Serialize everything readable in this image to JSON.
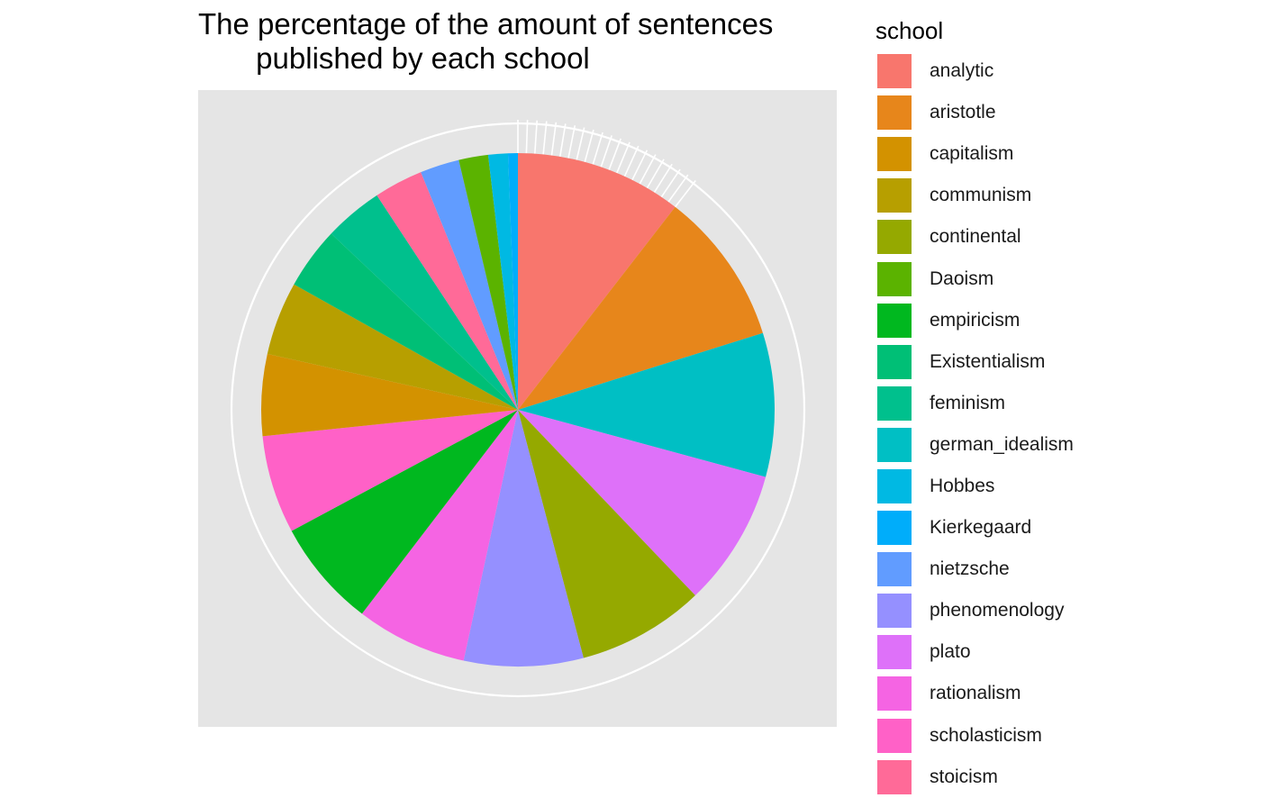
{
  "chart_data": {
    "type": "pie",
    "title": "The percentage of the amount of sentences\n       published by each school",
    "legend_title": "school",
    "legend_position": "right",
    "slices": [
      {
        "label": "analytic",
        "color": "#F8766D",
        "value": 10.2
      },
      {
        "label": "aristotle",
        "color": "#E7861B",
        "value": 9.4
      },
      {
        "label": "german_idealism",
        "color": "#00BFC4",
        "value": 8.8
      },
      {
        "label": "plato",
        "color": "#DE71F9",
        "value": 8.4
      },
      {
        "label": "continental",
        "color": "#95A900",
        "value": 7.8
      },
      {
        "label": "phenomenology",
        "color": "#9590FF",
        "value": 7.3
      },
      {
        "label": "rationalism",
        "color": "#F564E3",
        "value": 6.8
      },
      {
        "label": "empiricism",
        "color": "#00B81F",
        "value": 6.6
      },
      {
        "label": "scholasticism",
        "color": "#FF61C7",
        "value": 6.0
      },
      {
        "label": "capitalism",
        "color": "#D39200",
        "value": 5.0
      },
      {
        "label": "communism",
        "color": "#B79F00",
        "value": 4.5
      },
      {
        "label": "Existentialism",
        "color": "#00BF76",
        "value": 3.8
      },
      {
        "label": "feminism",
        "color": "#00C08D",
        "value": 3.6
      },
      {
        "label": "stoicism",
        "color": "#FF6A98",
        "value": 3.0
      },
      {
        "label": "nietzsche",
        "color": "#619CFF",
        "value": 2.4
      },
      {
        "label": "Daoism",
        "color": "#5BB300",
        "value": 1.8
      },
      {
        "label": "Hobbes",
        "color": "#00B9E3",
        "value": 1.2
      },
      {
        "label": "Kierkegaard",
        "color": "#00ADFA",
        "value": 0.6
      }
    ],
    "legend_items": [
      {
        "label": "analytic",
        "color": "#F8766D"
      },
      {
        "label": "aristotle",
        "color": "#E7861B"
      },
      {
        "label": "capitalism",
        "color": "#D39200"
      },
      {
        "label": "communism",
        "color": "#B79F00"
      },
      {
        "label": "continental",
        "color": "#95A900"
      },
      {
        "label": "Daoism",
        "color": "#5BB300"
      },
      {
        "label": "empiricism",
        "color": "#00B81F"
      },
      {
        "label": "Existentialism",
        "color": "#00BF76"
      },
      {
        "label": "feminism",
        "color": "#00C08D"
      },
      {
        "label": "german_idealism",
        "color": "#00BFC4"
      },
      {
        "label": "Hobbes",
        "color": "#00B9E3"
      },
      {
        "label": "Kierkegaard",
        "color": "#00ADFA"
      },
      {
        "label": "nietzsche",
        "color": "#619CFF"
      },
      {
        "label": "phenomenology",
        "color": "#9590FF"
      },
      {
        "label": "plato",
        "color": "#DE71F9"
      },
      {
        "label": "rationalism",
        "color": "#F564E3"
      },
      {
        "label": "scholasticism",
        "color": "#FF61C7"
      },
      {
        "label": "stoicism",
        "color": "#FF6A98"
      }
    ],
    "panel_background": "#E5E5E5",
    "grid": true
  }
}
